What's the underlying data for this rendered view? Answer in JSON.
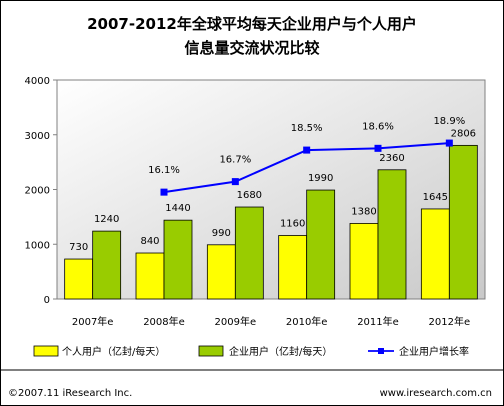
{
  "chart_data": {
    "type": "bar",
    "title_lines": [
      "2007-2012年全球平均每天企业用户与个人用户",
      "信息量交流状况比较"
    ],
    "categories": [
      "2007年e",
      "2008年e",
      "2009年e",
      "2010年e",
      "2011年e",
      "2012年e"
    ],
    "series": [
      {
        "name": "个人用户（亿封/每天）",
        "values": [
          730,
          840,
          990,
          1160,
          1380,
          1645
        ],
        "color": "#ffff00"
      },
      {
        "name": "企业用户（亿封/每天）",
        "values": [
          1240,
          1440,
          1680,
          1990,
          2360,
          2806
        ],
        "color": "#99cc00"
      }
    ],
    "line_series": {
      "name": "企业用户增长率",
      "color": "#0000ff",
      "x": [
        "2008年e",
        "2009年e",
        "2010年e",
        "2011年e",
        "2012年e"
      ],
      "values": [
        16.1,
        16.7,
        18.5,
        18.6,
        18.9
      ],
      "labels": [
        "16.1%",
        "16.7%",
        "18.5%",
        "18.6%",
        "18.9%"
      ]
    },
    "y_ticks": [
      0,
      1000,
      2000,
      3000,
      4000
    ],
    "ylim": [
      0,
      4000
    ],
    "grid": false,
    "legend_position": "bottom"
  },
  "footer": {
    "left": "©2007.11 iResearch Inc.",
    "right": "www.iresearch.com.cn"
  }
}
